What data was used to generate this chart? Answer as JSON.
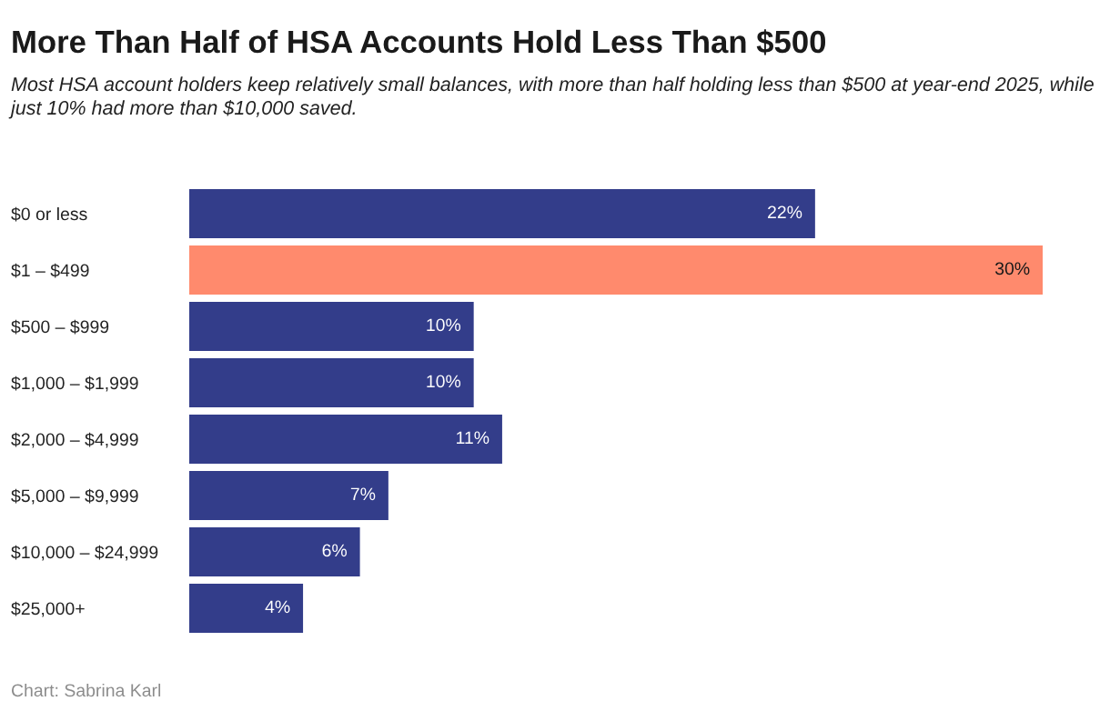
{
  "chart_data": {
    "type": "bar",
    "orientation": "horizontal",
    "title": "More Than Half of HSA Accounts Hold Less Than $500",
    "subtitle": "Most HSA account holders keep relatively small balances, with more than half holding less than $500 at year-end 2025, while just 10% had more than $10,000 saved.",
    "categories": [
      "$0 or less",
      "$1 – $499",
      "$500 – $999",
      "$1,000 – $1,999",
      "$2,000 – $4,999",
      "$5,000 – $9,999",
      "$10,000 – $24,999",
      "$25,000+"
    ],
    "values": [
      22,
      30,
      10,
      10,
      11,
      7,
      6,
      4
    ],
    "value_labels": [
      "22%",
      "30%",
      "10%",
      "10%",
      "11%",
      "7%",
      "6%",
      "4%"
    ],
    "colors": [
      "#333d8a",
      "#ff8a6d",
      "#333d8a",
      "#333d8a",
      "#333d8a",
      "#333d8a",
      "#333d8a",
      "#333d8a"
    ],
    "annotations": [
      "Chart: Sabrina Karl"
    ]
  }
}
